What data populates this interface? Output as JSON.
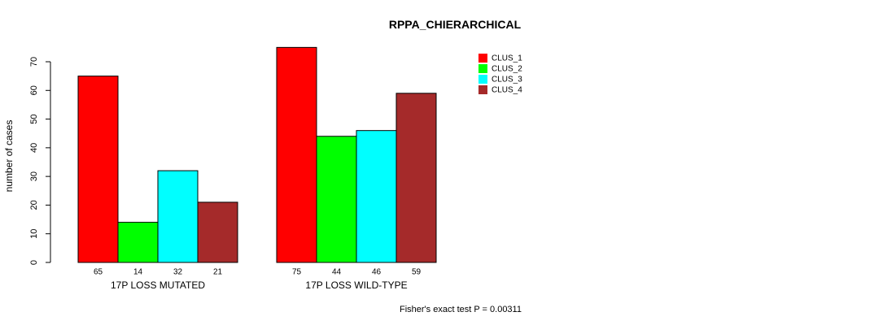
{
  "chart_data": {
    "type": "bar",
    "title": "RPPA_CHIERARCHICAL",
    "ylabel": "number of cases",
    "xlabel": "",
    "ylim": [
      0,
      70
    ],
    "yticks": [
      0,
      10,
      20,
      30,
      40,
      50,
      60,
      70
    ],
    "groups": [
      "17P LOSS MUTATED",
      "17P LOSS WILD-TYPE"
    ],
    "series": [
      {
        "name": "CLUS_1",
        "color": "#ff0000",
        "values": [
          65,
          75
        ]
      },
      {
        "name": "CLUS_2",
        "color": "#00ff00",
        "values": [
          14,
          44
        ]
      },
      {
        "name": "CLUS_3",
        "color": "#00ffff",
        "values": [
          32,
          46
        ]
      },
      {
        "name": "CLUS_4",
        "color": "#a52a2a",
        "values": [
          21,
          59
        ]
      }
    ],
    "legend_position": "top-right",
    "grid": false,
    "footnote": "Fisher's exact test P = 0.00311"
  }
}
